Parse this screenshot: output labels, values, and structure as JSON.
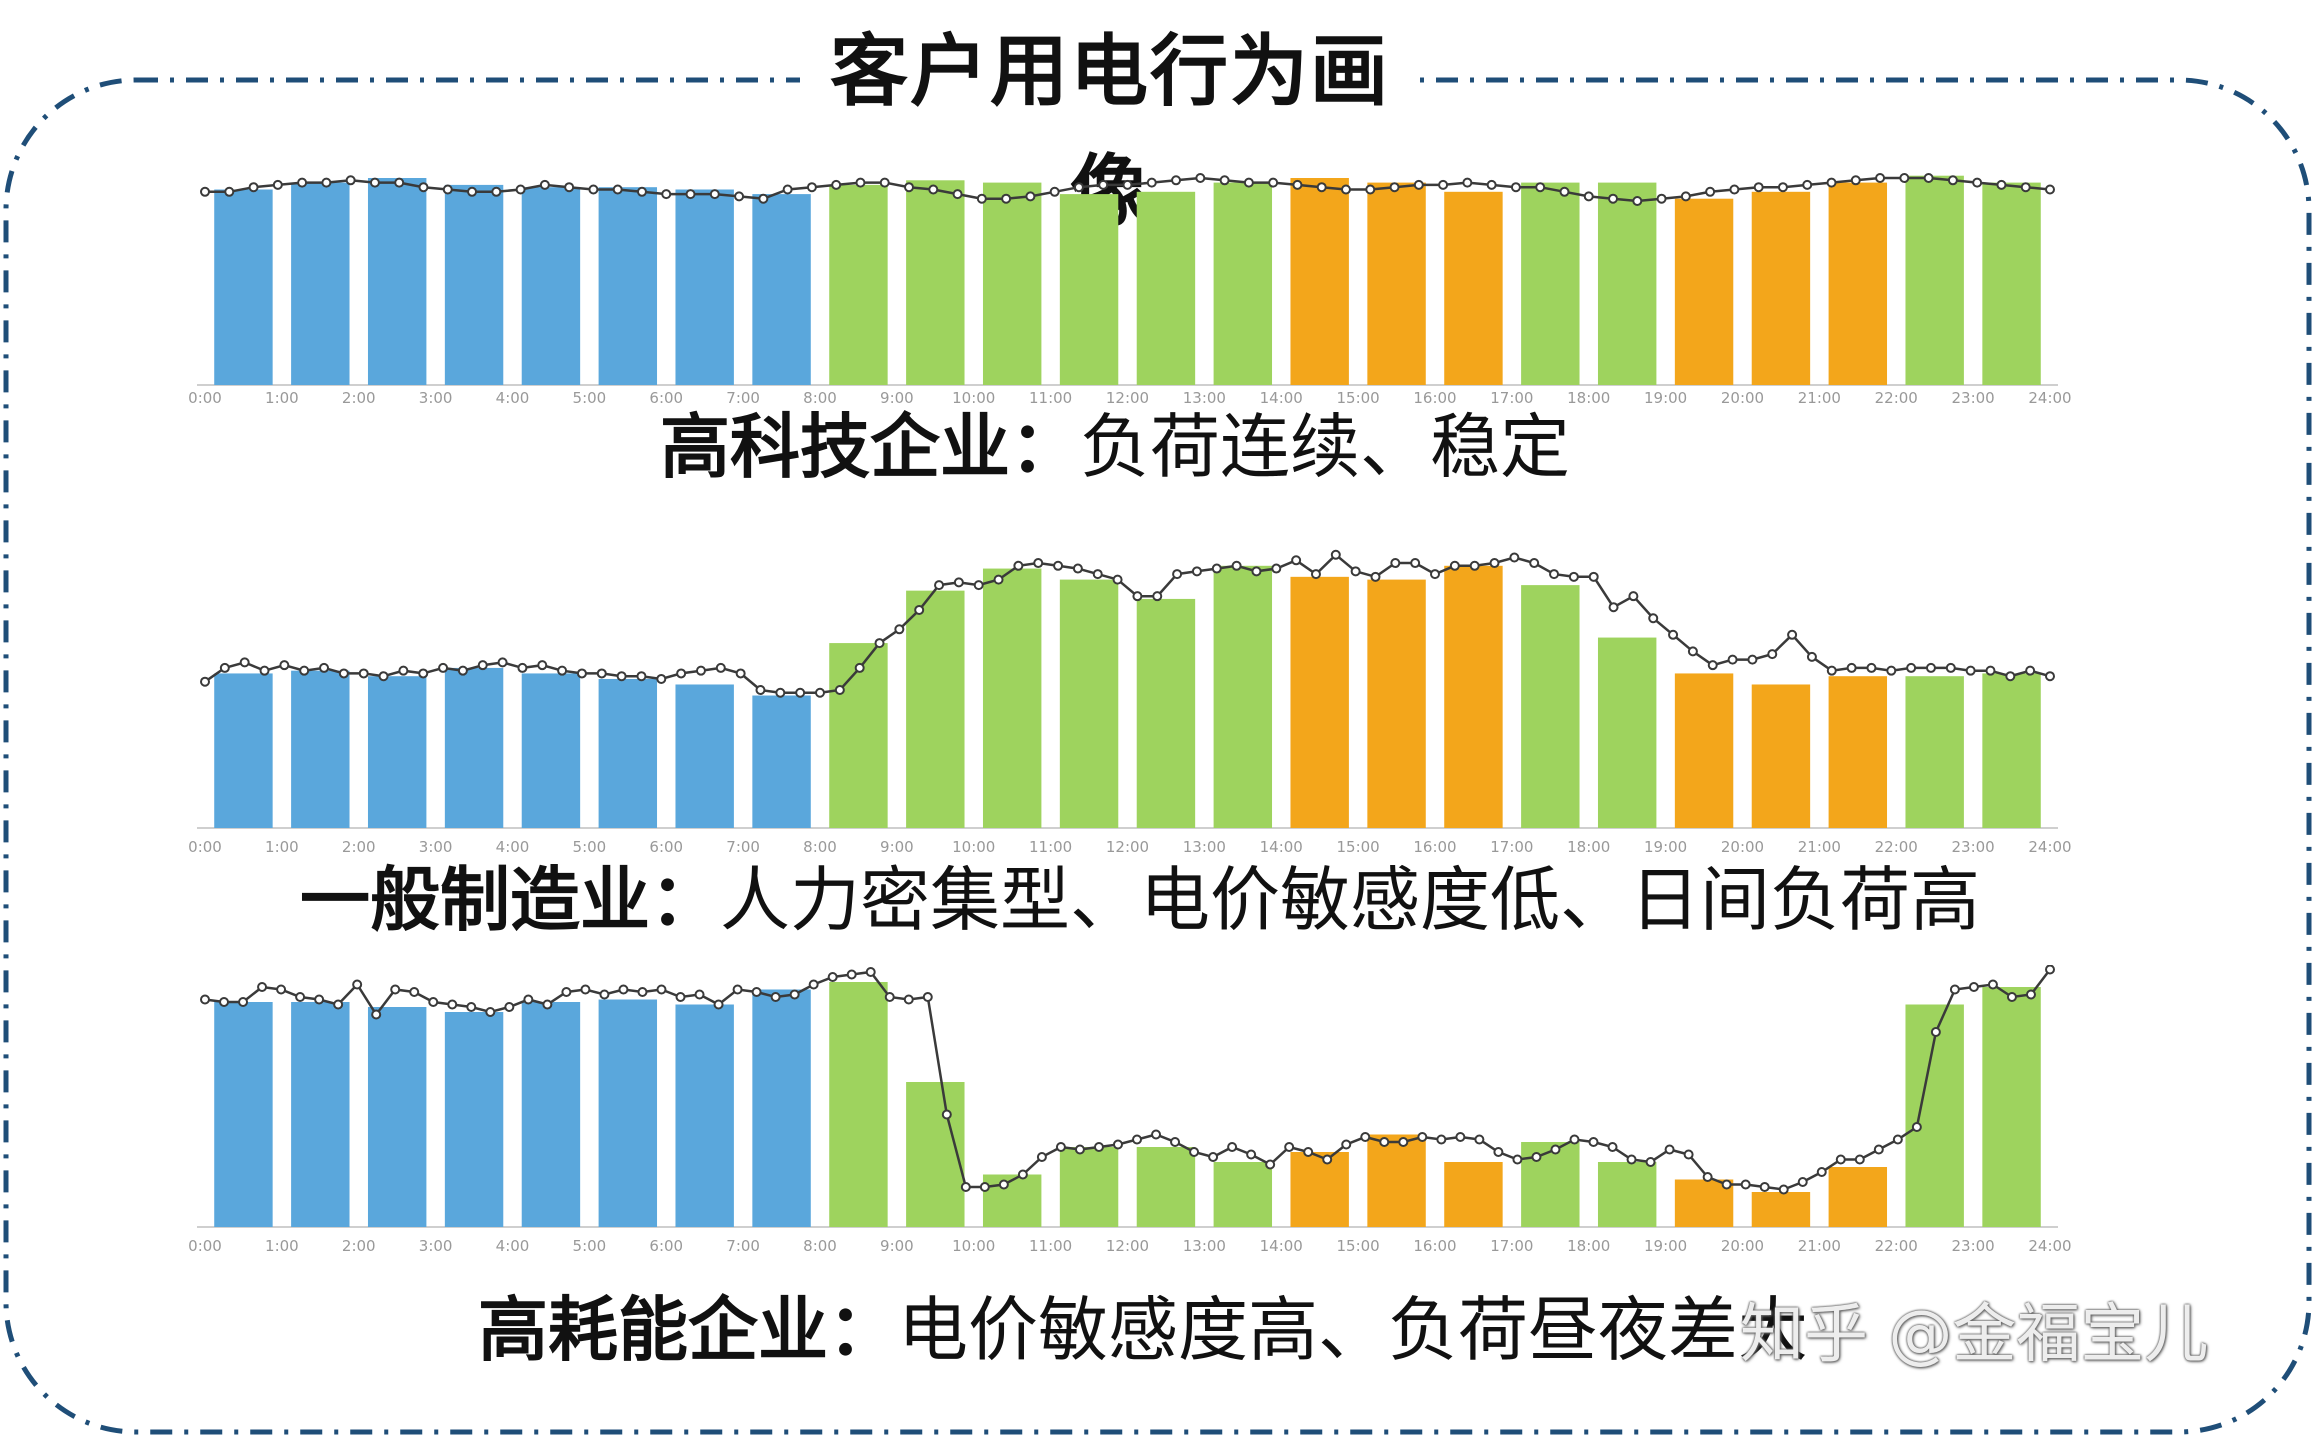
{
  "title": "客户用电行为画像",
  "colors": {
    "blue": "#5aa7dc",
    "green": "#9ed35e",
    "orange": "#f3a61b",
    "line": "#3a3a3a",
    "border": "#1f4e78"
  },
  "x_tick_labels": [
    "0:00",
    "1:00",
    "2:00",
    "3:00",
    "4:00",
    "5:00",
    "6:00",
    "7:00",
    "8:00",
    "9:00",
    "10:00",
    "11:00",
    "12:00",
    "13:00",
    "14:00",
    "15:00",
    "16:00",
    "17:00",
    "18:00",
    "19:00",
    "20:00",
    "21:00",
    "22:00",
    "23:00",
    "24:00"
  ],
  "chart_data": [
    {
      "type": "bar",
      "categories": [
        "0:00",
        "1:00",
        "2:00",
        "3:00",
        "4:00",
        "5:00",
        "6:00",
        "7:00",
        "8:00",
        "9:00",
        "10:00",
        "11:00",
        "12:00",
        "13:00",
        "14:00",
        "15:00",
        "16:00",
        "17:00",
        "18:00",
        "19:00",
        "20:00",
        "21:00",
        "22:00",
        "23:00"
      ],
      "values": [
        85,
        88,
        90,
        87,
        86,
        86,
        85,
        83,
        87,
        89,
        88,
        83,
        84,
        88,
        90,
        88,
        84,
        88,
        88,
        81,
        84,
        88,
        91,
        88
      ],
      "bar_colors": [
        "blue",
        "blue",
        "blue",
        "blue",
        "blue",
        "blue",
        "blue",
        "blue",
        "green",
        "green",
        "green",
        "green",
        "green",
        "green",
        "orange",
        "orange",
        "orange",
        "green",
        "green",
        "orange",
        "orange",
        "orange",
        "green",
        "green"
      ],
      "line_values": [
        84,
        84,
        86,
        87,
        88,
        88,
        89,
        88,
        88,
        86,
        85,
        84,
        84,
        85,
        87,
        86,
        85,
        85,
        84,
        83,
        83,
        83,
        82,
        81,
        85,
        86,
        87,
        88,
        88,
        86,
        85,
        83,
        81,
        81,
        82,
        84,
        86,
        87,
        87,
        88,
        89,
        90,
        89,
        88,
        88,
        87,
        86,
        85,
        85,
        86,
        87,
        87,
        88,
        87,
        86,
        86,
        84,
        82,
        81,
        80,
        81,
        82,
        84,
        85,
        86,
        86,
        87,
        88,
        89,
        90,
        90,
        90,
        89,
        88,
        87,
        86,
        85
      ]
    },
    {
      "type": "bar",
      "categories": [
        "0:00",
        "1:00",
        "2:00",
        "3:00",
        "4:00",
        "5:00",
        "6:00",
        "7:00",
        "8:00",
        "9:00",
        "10:00",
        "11:00",
        "12:00",
        "13:00",
        "14:00",
        "15:00",
        "16:00",
        "17:00",
        "18:00",
        "19:00",
        "20:00",
        "21:00",
        "22:00",
        "23:00"
      ],
      "values": [
        56,
        57,
        55,
        58,
        56,
        54,
        52,
        48,
        67,
        86,
        94,
        90,
        83,
        95,
        91,
        90,
        95,
        88,
        69,
        56,
        52,
        55,
        55,
        56
      ],
      "bar_colors": [
        "blue",
        "blue",
        "blue",
        "blue",
        "blue",
        "blue",
        "blue",
        "blue",
        "green",
        "green",
        "green",
        "green",
        "green",
        "green",
        "orange",
        "orange",
        "orange",
        "green",
        "green",
        "orange",
        "orange",
        "orange",
        "green",
        "green"
      ],
      "line_values": [
        53,
        58,
        60,
        57,
        59,
        57,
        58,
        56,
        56,
        55,
        57,
        56,
        58,
        57,
        59,
        60,
        58,
        59,
        57,
        56,
        56,
        55,
        55,
        54,
        56,
        57,
        58,
        56,
        50,
        49,
        49,
        49,
        50,
        58,
        67,
        72,
        79,
        88,
        89,
        88,
        90,
        95,
        96,
        95,
        94,
        92,
        90,
        84,
        84,
        92,
        93,
        94,
        95,
        93,
        94,
        97,
        92,
        99,
        93,
        91,
        96,
        96,
        92,
        95,
        95,
        96,
        98,
        96,
        92,
        91,
        91,
        80,
        84,
        76,
        70,
        64,
        59,
        61,
        61,
        63,
        70,
        62,
        57,
        58,
        58,
        57,
        58,
        58,
        58,
        57,
        57,
        55,
        57,
        55
      ]
    },
    {
      "type": "bar",
      "categories": [
        "0:00",
        "1:00",
        "2:00",
        "3:00",
        "4:00",
        "5:00",
        "6:00",
        "7:00",
        "8:00",
        "9:00",
        "10:00",
        "11:00",
        "12:00",
        "13:00",
        "14:00",
        "15:00",
        "16:00",
        "17:00",
        "18:00",
        "19:00",
        "20:00",
        "21:00",
        "22:00",
        "23:00"
      ],
      "values": [
        90,
        90,
        88,
        86,
        90,
        91,
        89,
        95,
        98,
        58,
        21,
        32,
        32,
        26,
        30,
        37,
        26,
        34,
        26,
        19,
        14,
        24,
        89,
        96
      ],
      "bar_colors": [
        "blue",
        "blue",
        "blue",
        "blue",
        "blue",
        "blue",
        "blue",
        "blue",
        "green",
        "green",
        "green",
        "green",
        "green",
        "green",
        "orange",
        "orange",
        "orange",
        "green",
        "green",
        "orange",
        "orange",
        "orange",
        "green",
        "green"
      ],
      "line_values": [
        91,
        90,
        90,
        96,
        95,
        92,
        91,
        89,
        97,
        85,
        95,
        94,
        90,
        89,
        88,
        86,
        88,
        91,
        89,
        94,
        95,
        93,
        95,
        94,
        95,
        92,
        93,
        89,
        95,
        94,
        92,
        93,
        97,
        100,
        101,
        102,
        92,
        91,
        92,
        45,
        16,
        16,
        17,
        21,
        28,
        32,
        31,
        32,
        33,
        35,
        37,
        34,
        30,
        28,
        32,
        29,
        25,
        32,
        30,
        27,
        33,
        36,
        34,
        34,
        36,
        35,
        36,
        35,
        30,
        27,
        28,
        31,
        35,
        34,
        32,
        27,
        26,
        31,
        29,
        20,
        17,
        17,
        16,
        15,
        18,
        22,
        27,
        27,
        31,
        35,
        40,
        78,
        95,
        96,
        97,
        92,
        93,
        103
      ]
    }
  ],
  "captions": [
    {
      "bold": "高科技企业：",
      "normal": "负荷连续、稳定"
    },
    {
      "bold": "一般制造业：",
      "normal": "人力密集型、电价敏感度低、日间负荷高"
    },
    {
      "bold": "高耗能企业：",
      "normal": "电价敏感度高、负荷昼夜差大"
    }
  ],
  "watermark": "知乎 @金福宝儿"
}
